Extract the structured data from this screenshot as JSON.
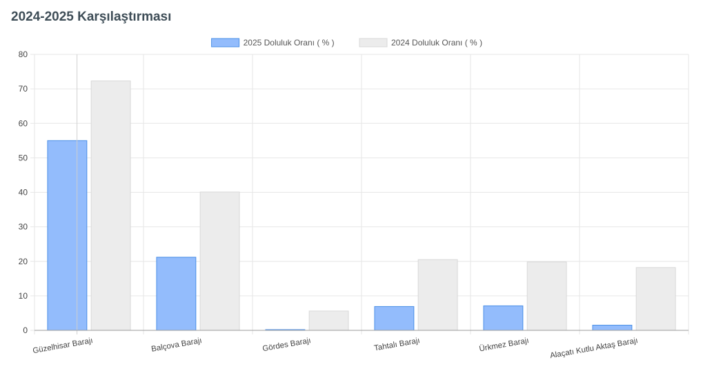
{
  "page": {
    "title": "2024-2025 Karşılaştırması"
  },
  "chart_data": {
    "type": "bar",
    "categories": [
      "Güzelhisar Barajı",
      "Balçova Barajı",
      "Gördes Barajı",
      "Tahtalı Barajı",
      "Ürkmez Barajı",
      "Alaçatı Kutlu Aktaş Barajı"
    ],
    "series": [
      {
        "name": "2025 Doluluk Oranı ( % )",
        "values": [
          55.0,
          21.2,
          0.2,
          6.9,
          7.1,
          1.5
        ],
        "color": "#93bcfc",
        "border": "#4a8fe6"
      },
      {
        "name": "2024 Doluluk Oranı ( % )",
        "values": [
          72.3,
          40.1,
          5.6,
          20.5,
          19.8,
          18.2
        ],
        "color": "#ececec",
        "border": "#d8d8d8"
      }
    ],
    "yticks": [
      0,
      10,
      20,
      30,
      40,
      50,
      60,
      70,
      80
    ],
    "ylim": [
      0,
      80
    ],
    "title": "2024-2025 Karşılaştırması",
    "legend": "top-center",
    "grid": true
  }
}
